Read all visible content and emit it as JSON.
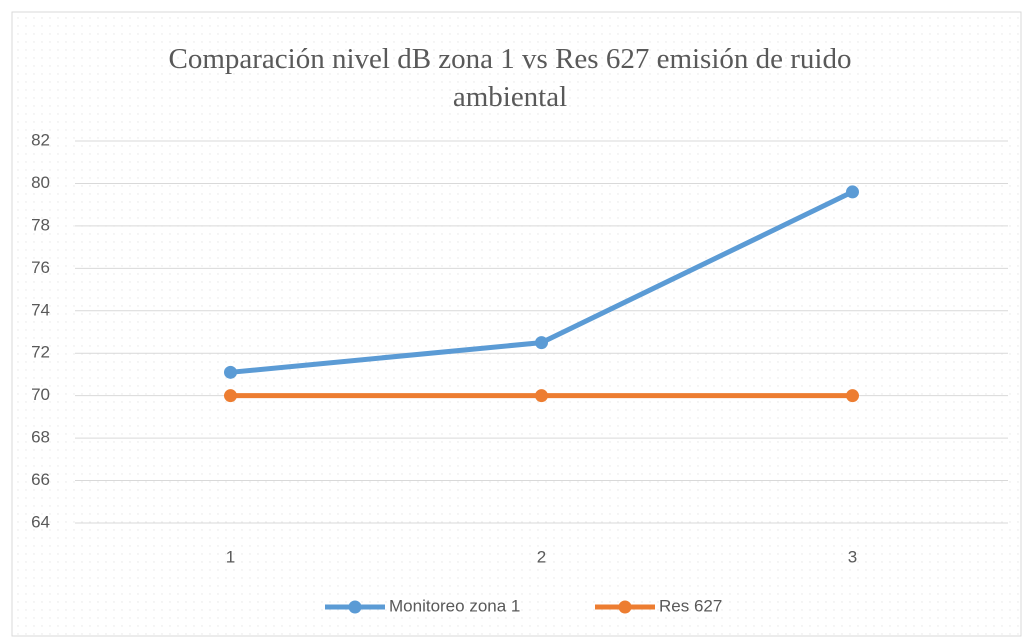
{
  "chart_data": {
    "type": "line",
    "title": "Comparación nivel dB zona 1 vs Res 627 emisión de ruido ambiental",
    "categories": [
      "1",
      "2",
      "3"
    ],
    "series": [
      {
        "name": "Monitoreo zona 1",
        "color": "#5b9bd5",
        "values": [
          71.1,
          72.5,
          79.6
        ]
      },
      {
        "name": "Res 627",
        "color": "#ed7d31",
        "values": [
          70,
          70,
          70
        ]
      }
    ],
    "ylim": [
      64,
      82
    ],
    "yticks": [
      64,
      66,
      68,
      70,
      72,
      74,
      76,
      78,
      80,
      82
    ],
    "grid": true,
    "legend": "bottom"
  }
}
